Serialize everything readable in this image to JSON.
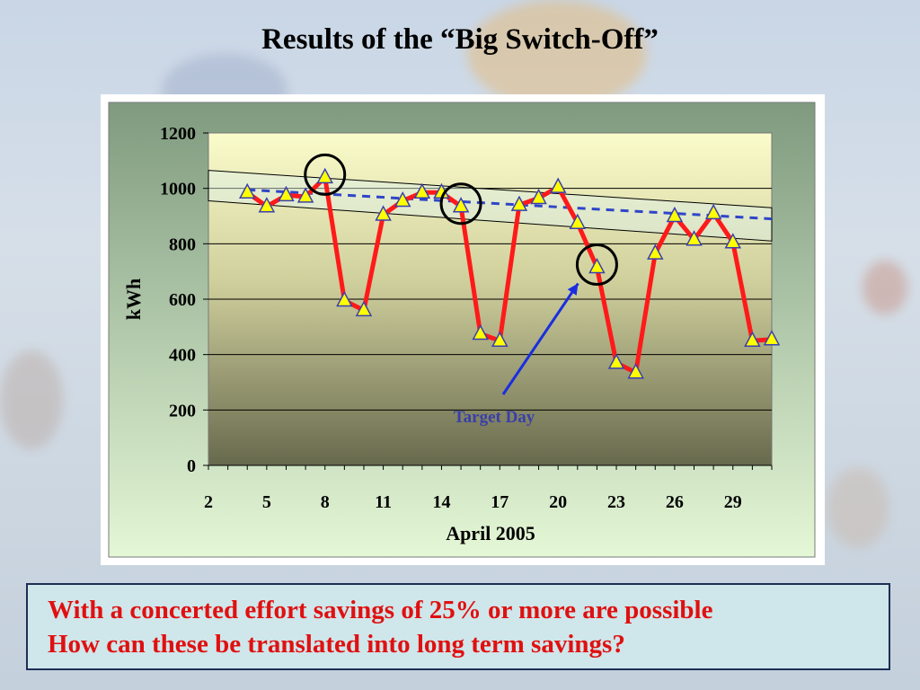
{
  "slide": {
    "title": "Results of the “Big Switch-Off”"
  },
  "message": {
    "line1": "With a concerted effort savings of 25% or more are possible",
    "line2": "How can these be translated into long term savings?"
  },
  "colors": {
    "series_line": "#ff1a1a",
    "marker_fill": "#ffff00",
    "marker_stroke": "#3a3fb0",
    "trend_line": "#2f45c8",
    "message_text": "#e01010",
    "message_bg": "#cfe6ea"
  },
  "chart_data": {
    "type": "line",
    "xlabel": "April 2005",
    "ylabel": "kWh",
    "xlim": [
      2,
      31
    ],
    "ylim": [
      0,
      1200
    ],
    "x_ticks": [
      2,
      5,
      8,
      11,
      14,
      17,
      20,
      23,
      26,
      29
    ],
    "y_ticks": [
      0,
      200,
      400,
      600,
      800,
      1000,
      1200
    ],
    "grid": "horizontal",
    "series": [
      {
        "x": [
          4,
          5,
          6,
          7,
          8,
          9,
          10,
          11,
          12,
          13,
          14,
          15,
          16,
          17,
          18,
          19,
          20,
          21,
          22,
          23,
          24,
          25,
          26,
          27,
          28,
          29,
          30,
          31
        ],
        "values": [
          985,
          935,
          975,
          970,
          1040,
          595,
          560,
          905,
          955,
          985,
          985,
          935,
          475,
          450,
          940,
          965,
          1005,
          875,
          715,
          370,
          335,
          765,
          900,
          815,
          910,
          805,
          450,
          455
        ]
      }
    ],
    "trend": {
      "x": [
        4,
        31
      ],
      "values": [
        995,
        890
      ]
    },
    "trend_band": {
      "x": [
        2,
        31
      ],
      "upper": [
        1065,
        930
      ],
      "lower": [
        955,
        810
      ]
    },
    "circled_x": [
      8,
      15,
      22
    ],
    "annotation": {
      "text": "Target Day",
      "x": 22
    }
  }
}
